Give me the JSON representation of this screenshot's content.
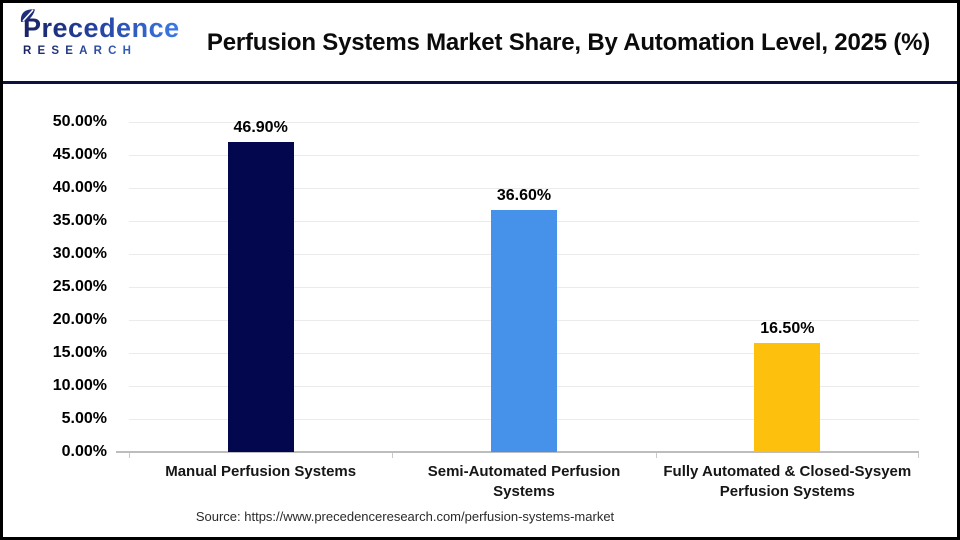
{
  "brand": {
    "name": "Precedence",
    "subtitle": "RESEARCH"
  },
  "header": {
    "title": "Perfusion Systems Market Share, By Automation Level, 2025 (%)"
  },
  "chart_data": {
    "type": "bar",
    "title": "Perfusion Systems Market Share, By Automation Level, 2025 (%)",
    "categories": [
      "Manual Perfusion Systems",
      "Semi-Automated Perfusion Systems",
      "Fully Automated & Closed-Sysyem Perfusion Systems"
    ],
    "values": [
      46.9,
      36.6,
      16.5
    ],
    "value_labels": [
      "46.90%",
      "36.60%",
      "16.50%"
    ],
    "bar_colors": [
      "#03084e",
      "#4691ea",
      "#fdc00d"
    ],
    "ylim": [
      0,
      50
    ],
    "ytick_step": 5,
    "ytick_labels": [
      "0.00%",
      "5.00%",
      "10.00%",
      "15.00%",
      "20.00%",
      "25.00%",
      "30.00%",
      "35.00%",
      "40.00%",
      "45.00%",
      "50.00%"
    ],
    "xlabel": "",
    "ylabel": "",
    "grid": true,
    "legend": false
  },
  "footer": {
    "source": "Source: https://www.precedenceresearch.com/perfusion-systems-market"
  },
  "colors": {
    "accent_navy": "#0d1240",
    "bar_navy": "#03084e",
    "bar_blue": "#4691ea",
    "bar_yellow": "#fdc00d",
    "gridline": "#ebebeb",
    "axis": "#bdbdbd"
  }
}
